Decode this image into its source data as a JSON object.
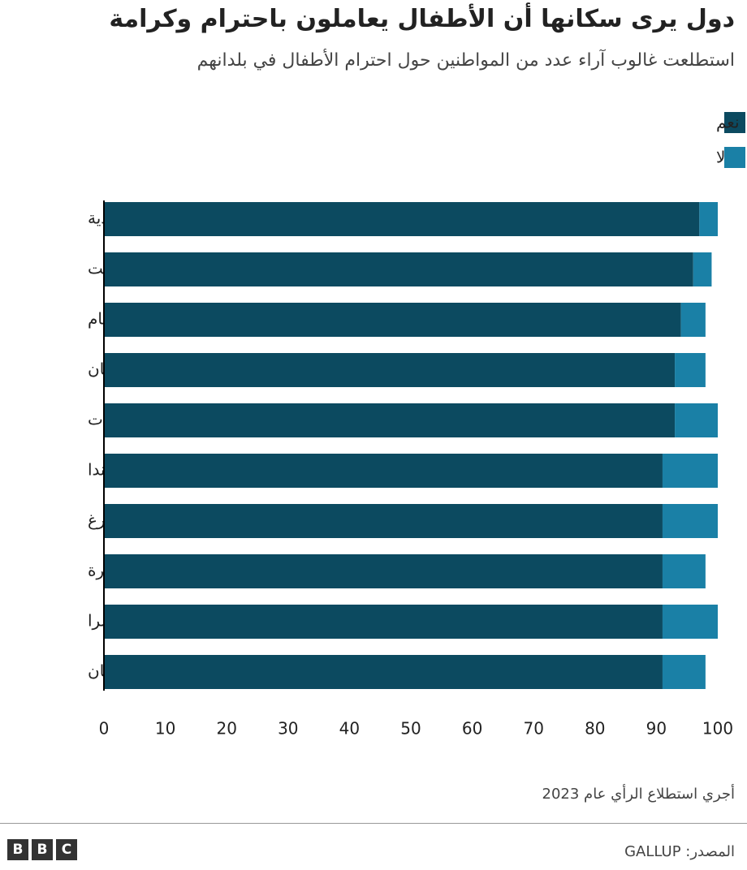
{
  "chart_data": {
    "type": "stacked-bar-horizontal",
    "title": "دول يرى سكانها أن الأطفال يعاملون باحترام وكرامة",
    "subtitle": "استطلعت غالوب آراء عدد من المواطنين حول احترام الأطفال في بلدانهم",
    "categories": [
      "السعودية",
      "الكويت",
      "فيتنام",
      "طاجكستان",
      "الإمارات",
      "أيرلندا",
      "لوكسمبرغ",
      "سنغافورة",
      "سويسرا",
      "أوزباكستان"
    ],
    "series": [
      {
        "name": "نعم",
        "color": "#0c4a60",
        "values": [
          97,
          96,
          94,
          93,
          93,
          91,
          91,
          91,
          91,
          91
        ]
      },
      {
        "name": "لا",
        "color": "#1a80a6",
        "values": [
          3,
          3,
          4,
          5,
          7,
          9,
          9,
          7,
          9,
          7
        ]
      }
    ],
    "xlim": [
      0,
      100
    ],
    "xticks": [
      0,
      10,
      20,
      30,
      40,
      50,
      60,
      70,
      80,
      90,
      100
    ],
    "grid": false,
    "note": "أجري استطلاع الرأي عام 2023",
    "source": "المصدر: GALLUP"
  },
  "logo": [
    "B",
    "B",
    "C"
  ]
}
